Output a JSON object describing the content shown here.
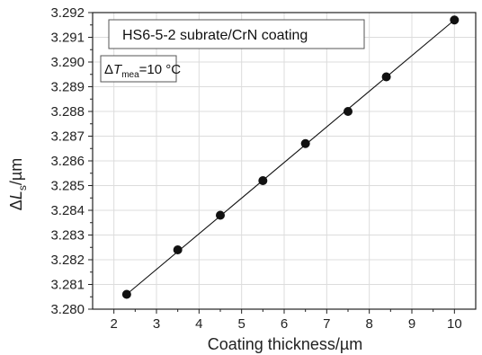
{
  "chart_data": {
    "type": "scatter",
    "title": "",
    "xlabel": "Coating thickness/µm",
    "ylabel": {
      "prefix": "Δ",
      "var": "L",
      "sub": "s",
      "suffix": "/µm"
    },
    "xlim": [
      1.5,
      10.5
    ],
    "ylim": [
      3.28,
      3.292
    ],
    "x_ticks": [
      2,
      3,
      4,
      5,
      6,
      7,
      8,
      9,
      10
    ],
    "y_ticks": [
      3.28,
      3.281,
      3.282,
      3.283,
      3.284,
      3.285,
      3.286,
      3.287,
      3.288,
      3.289,
      3.29,
      3.291,
      3.292
    ],
    "x_tick_labels": [
      "2",
      "3",
      "4",
      "5",
      "6",
      "7",
      "8",
      "9",
      "10"
    ],
    "y_tick_labels": [
      "3.280",
      "3.281",
      "3.282",
      "3.283",
      "3.284",
      "3.285",
      "3.286",
      "3.287",
      "3.288",
      "3.289",
      "3.290",
      "3.291",
      "3.292"
    ],
    "grid": true,
    "legend_placement": "top-left",
    "legend_label": "HS6-5-2 subrate/CrN coating",
    "annotation": {
      "prefix": "Δ",
      "var": "T",
      "sub": "mea",
      "suffix": "=10 °C"
    },
    "series": [
      {
        "x": [
          2.3,
          3.5,
          4.5,
          5.5,
          6.5,
          7.5,
          8.4,
          10.0
        ],
        "y": [
          3.2806,
          3.2824,
          3.2838,
          3.2852,
          3.2867,
          3.288,
          3.2894,
          3.2917
        ],
        "marker": "circle",
        "line": "linear-fit",
        "fit_x": [
          2.3,
          10.0
        ],
        "fit_y": [
          3.2806,
          3.2917
        ]
      }
    ],
    "colors": {
      "marker": "#111111",
      "line": "#111111",
      "grid": "#dcdcdc",
      "axis": "#222222"
    }
  }
}
